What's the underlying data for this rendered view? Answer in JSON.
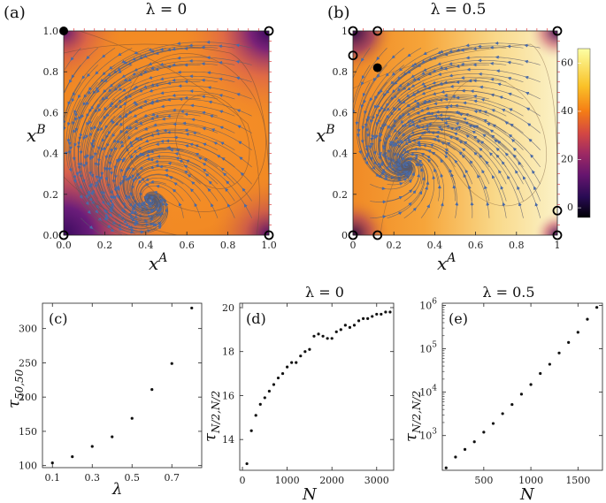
{
  "chart_data": [
    {
      "id": "a",
      "type": "heatmap",
      "panel_label": "(a)",
      "title": "λ = 0",
      "xlabel": "x",
      "xlabel_sup": "A",
      "ylabel": "x",
      "ylabel_sup": "B",
      "xlim": [
        0,
        1
      ],
      "ylim": [
        0,
        1
      ],
      "xticks": [
        {
          "v": 0.0,
          "label": "0.0"
        },
        {
          "v": 0.2,
          "label": "0.2"
        },
        {
          "v": 0.4,
          "label": "0.4"
        },
        {
          "v": 0.6,
          "label": "0.6"
        },
        {
          "v": 0.8,
          "label": "0.8"
        },
        {
          "v": 1.0,
          "label": "1.0"
        }
      ],
      "yticks": [
        {
          "v": 0.0,
          "label": "0.0"
        },
        {
          "v": 0.2,
          "label": "0.2"
        },
        {
          "v": 0.4,
          "label": "0.4"
        },
        {
          "v": 0.6,
          "label": "0.6"
        },
        {
          "v": 0.8,
          "label": "0.8"
        },
        {
          "v": 1.0,
          "label": "1.0"
        }
      ],
      "stable_points": [
        [
          0.0,
          1.0
        ]
      ],
      "unstable_points": [
        [
          1.0,
          1.0
        ],
        [
          0.0,
          0.0
        ],
        [
          1.0,
          0.0
        ]
      ]
    },
    {
      "id": "b",
      "type": "heatmap",
      "panel_label": "(b)",
      "title": "λ = 0.5",
      "xlabel": "x",
      "xlabel_sup": "A",
      "ylabel": "x",
      "ylabel_sup": "B",
      "xlim": [
        0,
        1
      ],
      "ylim": [
        0,
        1
      ],
      "xticks": [
        {
          "v": 0.0,
          "label": "0"
        },
        {
          "v": 0.2,
          "label": "0.2"
        },
        {
          "v": 0.4,
          "label": "0.4"
        },
        {
          "v": 0.6,
          "label": "0.6"
        },
        {
          "v": 0.8,
          "label": "0.8"
        },
        {
          "v": 1.0,
          "label": "1"
        }
      ],
      "yticks": [
        {
          "v": 0.0,
          "label": "0"
        },
        {
          "v": 0.2,
          "label": "0.2"
        },
        {
          "v": 0.4,
          "label": "0.4"
        },
        {
          "v": 0.6,
          "label": "0.6"
        },
        {
          "v": 0.8,
          "label": "0.8"
        },
        {
          "v": 1.0,
          "label": "1"
        }
      ],
      "stable_points": [
        [
          0.12,
          0.82
        ]
      ],
      "unstable_points": [
        [
          0.0,
          1.0
        ],
        [
          0.12,
          1.0
        ],
        [
          1.0,
          1.0
        ],
        [
          0.0,
          0.88
        ],
        [
          0.0,
          0.0
        ],
        [
          0.12,
          0.0
        ],
        [
          1.0,
          0.0
        ],
        [
          1.0,
          0.12
        ]
      ],
      "colorbar": {
        "min": -4,
        "max": 66,
        "ticks": [
          0,
          20,
          40,
          60
        ],
        "labels": [
          "0",
          "20",
          "40",
          "60"
        ]
      }
    },
    {
      "id": "c",
      "type": "scatter",
      "panel_label": "(c)",
      "title": "",
      "xlabel": "λ",
      "ylabel": "τ",
      "ylabel_sub": "50,50",
      "xlim": [
        0.05,
        0.85
      ],
      "ylim": [
        97,
        337
      ],
      "x": [
        0.1,
        0.2,
        0.3,
        0.4,
        0.5,
        0.6,
        0.7,
        0.8
      ],
      "y": [
        104,
        113,
        128,
        142,
        169,
        211,
        249,
        330
      ],
      "xticks": [
        0.1,
        0.3,
        0.5,
        0.7
      ],
      "xticklabels": [
        "0.1",
        "0.3",
        "0.5",
        "0.7"
      ],
      "yticks": [
        100,
        150,
        200,
        250,
        300
      ],
      "yticklabels": [
        "100",
        "150",
        "200",
        "250",
        "300"
      ]
    },
    {
      "id": "d",
      "type": "scatter",
      "panel_label": "(d)",
      "title": "λ = 0",
      "xlabel": "N",
      "ylabel": "τ",
      "ylabel_sub": "N/2,N/2",
      "xlim": [
        -60,
        3380
      ],
      "ylim": [
        12.6,
        20.2
      ],
      "x": [
        100,
        200,
        300,
        400,
        500,
        600,
        700,
        800,
        900,
        1000,
        1100,
        1200,
        1300,
        1400,
        1500,
        1600,
        1700,
        1800,
        1900,
        2000,
        2100,
        2200,
        2300,
        2400,
        2500,
        2600,
        2700,
        2800,
        2900,
        3000,
        3100,
        3200,
        3300
      ],
      "y": [
        12.9,
        14.4,
        15.1,
        15.6,
        15.9,
        16.2,
        16.5,
        16.8,
        17.0,
        17.3,
        17.5,
        17.5,
        17.8,
        18.0,
        18.1,
        18.7,
        18.8,
        18.7,
        18.6,
        18.6,
        18.9,
        19.0,
        19.2,
        19.1,
        19.2,
        19.4,
        19.5,
        19.5,
        19.6,
        19.7,
        19.7,
        19.8,
        19.8
      ],
      "xticks": [
        0,
        1000,
        2000,
        3000
      ],
      "xticklabels": [
        "0",
        "1000",
        "2000",
        "3000"
      ],
      "yticks": [
        14,
        16,
        18,
        20
      ],
      "yticklabels": [
        "14",
        "16",
        "18",
        "20"
      ]
    },
    {
      "id": "e",
      "type": "scatter",
      "panel_label": "(e)",
      "title": "λ = 0.5",
      "xlabel": "N",
      "ylabel": "τ",
      "ylabel_sub": "N/2,N/2",
      "yscale": "log",
      "xlim": [
        60,
        1760
      ],
      "ylim_log10": [
        2.2,
        6.05
      ],
      "x": [
        100,
        200,
        300,
        400,
        500,
        600,
        700,
        800,
        900,
        1000,
        1100,
        1200,
        1300,
        1400,
        1500,
        1600,
        1700
      ],
      "y": [
        180,
        320,
        480,
        720,
        1200,
        1900,
        3200,
        5200,
        9000,
        15000,
        27000,
        44000,
        80000,
        140000,
        240000,
        480000,
        900000
      ],
      "xticks": [
        500,
        1000,
        1500
      ],
      "xticklabels": [
        "500",
        "1000",
        "1500"
      ],
      "yticks_log10": [
        3,
        4,
        5,
        6
      ],
      "yticklabels": [
        "10",
        "10",
        "10",
        "10"
      ],
      "ytickexps": [
        "3",
        "4",
        "5",
        "6"
      ]
    }
  ]
}
